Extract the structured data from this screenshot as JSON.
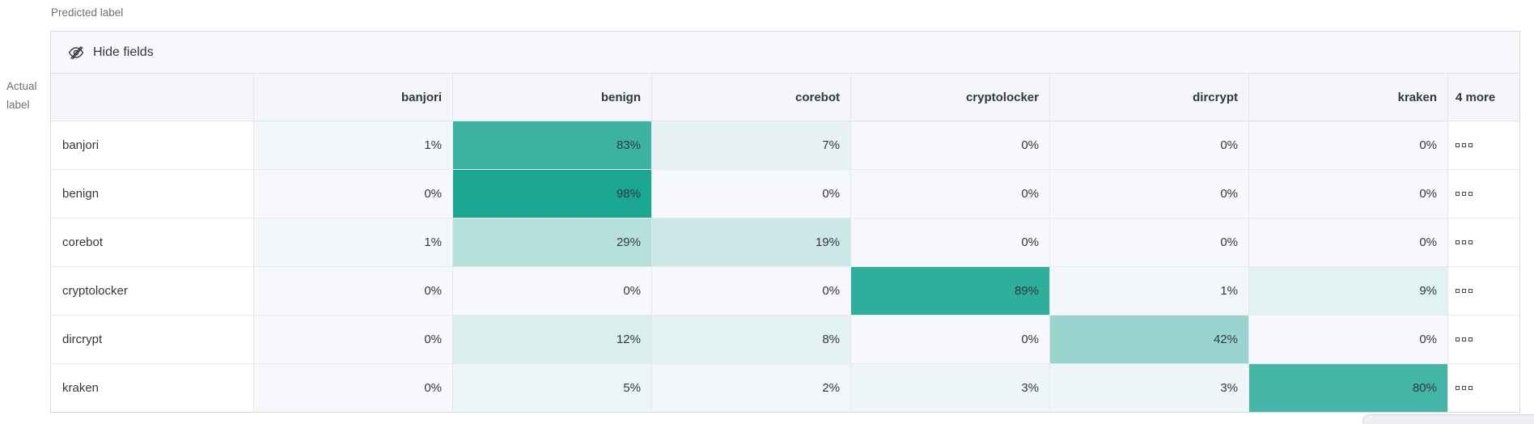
{
  "axes": {
    "predicted_label": "Predicted label",
    "actual_label": "Actual label"
  },
  "toolbar": {
    "hide_fields_label": "Hide fields"
  },
  "chart_data": {
    "type": "heatmap",
    "subtype": "confusion-matrix",
    "x_axis_title": "Predicted label",
    "y_axis_title": "Actual label",
    "columns": [
      "banjori",
      "benign",
      "corebot",
      "cryptolocker",
      "dircrypt",
      "kraken"
    ],
    "hidden_columns_label": "4 more",
    "rows": [
      {
        "label": "banjori",
        "values": [
          1,
          83,
          7,
          0,
          0,
          0
        ]
      },
      {
        "label": "benign",
        "values": [
          0,
          98,
          0,
          0,
          0,
          0
        ]
      },
      {
        "label": "corebot",
        "values": [
          1,
          29,
          19,
          0,
          0,
          0
        ]
      },
      {
        "label": "cryptolocker",
        "values": [
          0,
          0,
          0,
          89,
          1,
          9
        ]
      },
      {
        "label": "dircrypt",
        "values": [
          0,
          12,
          8,
          0,
          42,
          0
        ]
      },
      {
        "label": "kraken",
        "values": [
          0,
          5,
          2,
          3,
          3,
          80
        ]
      }
    ],
    "value_unit": "%",
    "colors": {
      "accent_teal": "#16a58f",
      "cell_base": "#f6f8fb"
    }
  }
}
